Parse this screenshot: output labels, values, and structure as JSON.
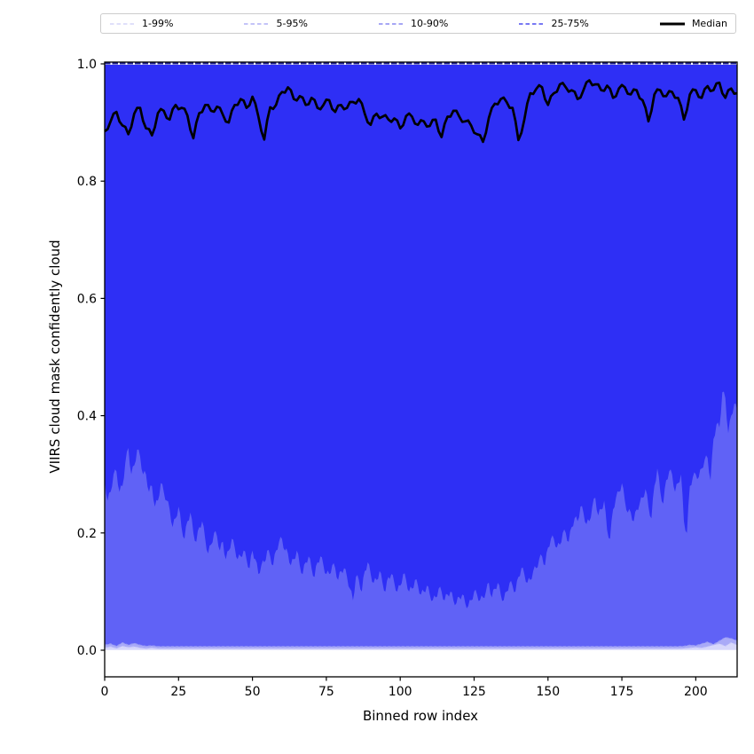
{
  "legend": {
    "entries": [
      {
        "label": "1-99%",
        "color": "#d6d6f9",
        "style": "dashed"
      },
      {
        "label": "5-95%",
        "color": "#b1b1f6",
        "style": "dashed"
      },
      {
        "label": "10-90%",
        "color": "#8a8af2",
        "style": "dashed"
      },
      {
        "label": "25-75%",
        "color": "#4b4def",
        "style": "dashed"
      },
      {
        "label": "Median",
        "color": "#000000",
        "style": "solid"
      }
    ]
  },
  "chart_data": {
    "type": "area",
    "title": "",
    "xlabel": "Binned row index",
    "ylabel": "VIIRS cloud mask confidently cloud",
    "xlim": [
      0,
      214
    ],
    "ylim": [
      -0.045,
      1.005
    ],
    "x_range": [
      0,
      214
    ],
    "xticks": [
      0,
      25,
      50,
      75,
      100,
      125,
      150,
      175,
      200
    ],
    "yticks": [
      0.0,
      0.2,
      0.4,
      0.6,
      0.8,
      1.0
    ],
    "grid": false,
    "legend_position": "top",
    "bands": [
      {
        "name": "1-99%",
        "upper": 1.0,
        "lower": 0.0005,
        "fill": "#d7d7fb",
        "line_color": "none",
        "jitter": 0
      },
      {
        "name": "5-95%",
        "upper": 1.0,
        "fill": "#a9aaf7",
        "line_color": "#c4c4f9",
        "jitter": 0,
        "lower": [
          0.004,
          0.006,
          0.003,
          0.007,
          0.005,
          0.006,
          0.004,
          0.0025,
          0.004,
          0.0025,
          0.0025,
          0.0025,
          0.0025,
          0.0025,
          0.0025,
          0.0025,
          0.0025,
          0.0025,
          0.0025,
          0.0025,
          0.0025,
          0.0025,
          0.0025,
          0.0025,
          0.0025,
          0.0025,
          0.0025,
          0.0025,
          0.0025,
          0.0025,
          0.0025,
          0.0025,
          0.0025,
          0.0025,
          0.0025,
          0.0025,
          0.0025,
          0.0025,
          0.0025,
          0.0025,
          0.0025,
          0.0025,
          0.0025,
          0.0025,
          0.0025,
          0.0025,
          0.0025,
          0.0025,
          0.0025,
          0.0025,
          0.0025,
          0.0025,
          0.0025,
          0.0025,
          0.0025,
          0.0025,
          0.0025,
          0.0025,
          0.0025,
          0.0025,
          0.0025,
          0.0025,
          0.0025,
          0.0025,
          0.0025,
          0.0025,
          0.0025,
          0.0025,
          0.0025,
          0.0025,
          0.0025,
          0.0025,
          0.0025,
          0.0025,
          0.0025,
          0.0025,
          0.0025,
          0.0025,
          0.0025,
          0.0025,
          0.0025,
          0.0025,
          0.0025,
          0.0025,
          0.0025,
          0.0025,
          0.0025,
          0.0025,
          0.0025,
          0.0025,
          0.0025,
          0.0025,
          0.0025,
          0.0025,
          0.0025,
          0.0025,
          0.0025,
          0.0025,
          0.003,
          0.004,
          0.005,
          0.004,
          0.006,
          0.009,
          0.011,
          0.007,
          0.013,
          0.009
        ]
      },
      {
        "name": "10-90%",
        "upper": 1.0,
        "fill": "#6062f6",
        "line_color": "#9597f4",
        "jitter": 0,
        "lower": [
          0.009,
          0.011,
          0.007,
          0.013,
          0.009,
          0.012,
          0.009,
          0.007,
          0.008,
          0.0065,
          0.0065,
          0.0065,
          0.0065,
          0.0065,
          0.0065,
          0.0065,
          0.0065,
          0.0065,
          0.0065,
          0.0065,
          0.0065,
          0.0065,
          0.0065,
          0.0065,
          0.0065,
          0.0065,
          0.0065,
          0.0065,
          0.0065,
          0.0065,
          0.0065,
          0.0065,
          0.0065,
          0.0065,
          0.0065,
          0.0065,
          0.0065,
          0.0065,
          0.0065,
          0.0065,
          0.0065,
          0.0065,
          0.0065,
          0.0065,
          0.0065,
          0.0065,
          0.0065,
          0.0065,
          0.0065,
          0.0065,
          0.0065,
          0.0065,
          0.0065,
          0.0065,
          0.0065,
          0.0065,
          0.0065,
          0.0065,
          0.0065,
          0.0065,
          0.0065,
          0.0065,
          0.0065,
          0.0065,
          0.0065,
          0.0065,
          0.0065,
          0.0065,
          0.0065,
          0.0065,
          0.0065,
          0.0065,
          0.0065,
          0.0065,
          0.0065,
          0.0065,
          0.0065,
          0.0065,
          0.0065,
          0.0065,
          0.0065,
          0.0065,
          0.0065,
          0.0065,
          0.0065,
          0.0065,
          0.0065,
          0.0065,
          0.0065,
          0.0065,
          0.0065,
          0.0065,
          0.0065,
          0.0065,
          0.0065,
          0.0065,
          0.0065,
          0.0065,
          0.007,
          0.009,
          0.008,
          0.011,
          0.014,
          0.01,
          0.016,
          0.022,
          0.02,
          0.016
        ]
      },
      {
        "name": "25-75%",
        "upper": 1.0,
        "fill": "#2e2ff5",
        "line_color": "none",
        "jitter": 0.006,
        "lower": [
          0.29,
          0.255,
          0.27,
          0.3,
          0.305,
          0.27,
          0.28,
          0.32,
          0.345,
          0.3,
          0.315,
          0.342,
          0.33,
          0.3,
          0.3,
          0.27,
          0.28,
          0.245,
          0.255,
          0.285,
          0.27,
          0.255,
          0.24,
          0.21,
          0.225,
          0.245,
          0.21,
          0.19,
          0.22,
          0.235,
          0.2,
          0.185,
          0.21,
          0.22,
          0.19,
          0.165,
          0.18,
          0.2,
          0.195,
          0.17,
          0.185,
          0.155,
          0.17,
          0.19,
          0.175,
          0.155,
          0.16,
          0.17,
          0.155,
          0.14,
          0.17,
          0.155,
          0.13,
          0.145,
          0.15,
          0.17,
          0.16,
          0.145,
          0.17,
          0.185,
          0.19,
          0.17,
          0.165,
          0.145,
          0.155,
          0.17,
          0.145,
          0.13,
          0.15,
          0.16,
          0.14,
          0.125,
          0.15,
          0.16,
          0.145,
          0.13,
          0.13,
          0.145,
          0.14,
          0.12,
          0.135,
          0.14,
          0.125,
          0.105,
          0.085,
          0.125,
          0.12,
          0.1,
          0.135,
          0.15,
          0.13,
          0.115,
          0.12,
          0.135,
          0.115,
          0.1,
          0.125,
          0.13,
          0.115,
          0.1,
          0.11,
          0.13,
          0.12,
          0.1,
          0.105,
          0.12,
          0.11,
          0.095,
          0.1,
          0.11,
          0.095,
          0.085,
          0.09,
          0.105,
          0.1,
          0.085,
          0.095,
          0.1,
          0.085,
          0.08,
          0.09,
          0.095,
          0.08,
          0.075,
          0.085,
          0.1,
          0.095,
          0.085,
          0.09,
          0.1,
          0.115,
          0.09,
          0.105,
          0.115,
          0.095,
          0.085,
          0.1,
          0.115,
          0.11,
          0.1,
          0.125,
          0.14,
          0.13,
          0.115,
          0.12,
          0.135,
          0.14,
          0.155,
          0.16,
          0.145,
          0.175,
          0.19,
          0.19,
          0.175,
          0.18,
          0.2,
          0.2,
          0.185,
          0.21,
          0.225,
          0.22,
          0.245,
          0.235,
          0.215,
          0.22,
          0.245,
          0.26,
          0.23,
          0.24,
          0.255,
          0.205,
          0.19,
          0.24,
          0.26,
          0.27,
          0.285,
          0.255,
          0.235,
          0.235,
          0.22,
          0.24,
          0.25,
          0.26,
          0.275,
          0.245,
          0.225,
          0.28,
          0.31,
          0.27,
          0.25,
          0.29,
          0.305,
          0.3,
          0.27,
          0.285,
          0.3,
          0.22,
          0.2,
          0.28,
          0.295,
          0.3,
          0.295,
          0.31,
          0.325,
          0.328,
          0.29,
          0.36,
          0.385,
          0.38,
          0.44,
          0.43,
          0.37,
          0.4,
          0.42,
          0.41
        ]
      }
    ],
    "median": {
      "name": "Median",
      "color": "#000000",
      "jitter": 0.005,
      "values": [
        0.885,
        0.902,
        0.918,
        0.895,
        0.88,
        0.915,
        0.925,
        0.89,
        0.878,
        0.916,
        0.92,
        0.905,
        0.93,
        0.925,
        0.912,
        0.873,
        0.916,
        0.93,
        0.92,
        0.927,
        0.913,
        0.9,
        0.93,
        0.94,
        0.925,
        0.944,
        0.91,
        0.871,
        0.926,
        0.93,
        0.952,
        0.96,
        0.94,
        0.945,
        0.93,
        0.942,
        0.925,
        0.93,
        0.938,
        0.918,
        0.93,
        0.925,
        0.935,
        0.94,
        0.915,
        0.896,
        0.915,
        0.91,
        0.905,
        0.907,
        0.89,
        0.911,
        0.91,
        0.896,
        0.902,
        0.894,
        0.905,
        0.875,
        0.91,
        0.92,
        0.91,
        0.902,
        0.895,
        0.88,
        0.867,
        0.908,
        0.932,
        0.94,
        0.935,
        0.925,
        0.87,
        0.905,
        0.95,
        0.957,
        0.96,
        0.93,
        0.95,
        0.965,
        0.96,
        0.955,
        0.94,
        0.955,
        0.972,
        0.965,
        0.955,
        0.963,
        0.942,
        0.958,
        0.96,
        0.948,
        0.955,
        0.938,
        0.902,
        0.948,
        0.955,
        0.945,
        0.952,
        0.942,
        0.905,
        0.948,
        0.955,
        0.942,
        0.962,
        0.955,
        0.968,
        0.942,
        0.958,
        0.95
      ]
    },
    "top_line": {
      "y": 1.0,
      "color": "#1c1c8e",
      "dash": "6.5 2"
    }
  }
}
